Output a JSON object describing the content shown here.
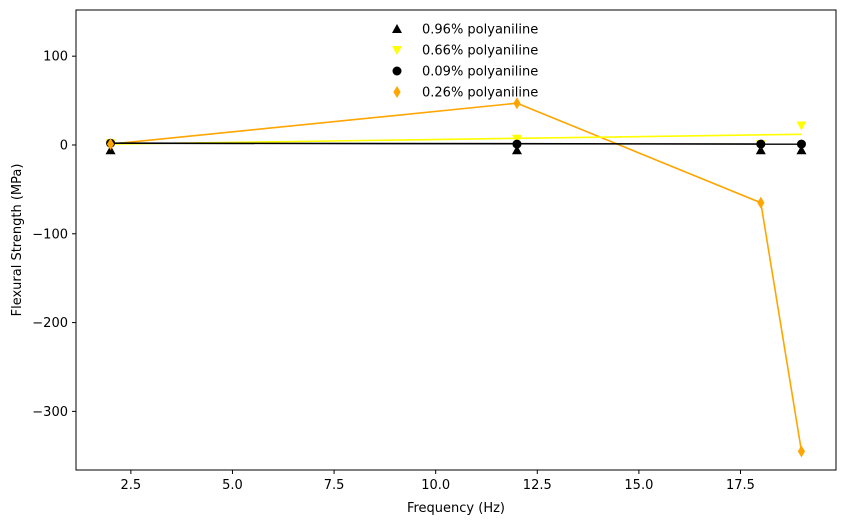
{
  "chart_data": {
    "type": "scatter",
    "xlabel": "Frequency (Hz)",
    "ylabel": "Flexural Strength (MPa)",
    "xlim": [
      1.15,
      19.85
    ],
    "ylim": [
      -366,
      152
    ],
    "xticks": [
      2.5,
      5.0,
      7.5,
      10.0,
      12.5,
      15.0,
      17.5
    ],
    "xtick_labels": [
      "2.5",
      "5.0",
      "7.5",
      "10.0",
      "12.5",
      "15.0",
      "17.5"
    ],
    "yticks": [
      100,
      0,
      -100,
      -200,
      -300
    ],
    "ytick_labels": [
      "100",
      "0",
      "−100",
      "−200",
      "−300"
    ],
    "grid": false,
    "legend_position": "top-center",
    "series": [
      {
        "name": "0.96% polyaniline",
        "marker": "triangle-up",
        "color": "#000000",
        "points": [
          [
            2,
            -6
          ],
          [
            12,
            -6
          ],
          [
            18,
            -6
          ],
          [
            19,
            -6
          ]
        ],
        "fit_line": null
      },
      {
        "name": "0.66% polyaniline",
        "marker": "triangle-down",
        "color": "#ffff00",
        "points": [
          [
            2,
            2
          ],
          [
            12,
            7
          ],
          [
            18,
            1
          ],
          [
            19,
            22
          ]
        ],
        "fit_line": [
          [
            2,
            1
          ],
          [
            19,
            12
          ]
        ]
      },
      {
        "name": "0.09% polyaniline",
        "marker": "circle",
        "color": "#000000",
        "points": [
          [
            2,
            2
          ],
          [
            12,
            1
          ],
          [
            18,
            1
          ],
          [
            19,
            1
          ]
        ],
        "fit_line": [
          [
            2,
            2
          ],
          [
            19,
            1
          ]
        ]
      },
      {
        "name": "0.26% polyaniline",
        "marker": "thin-diamond",
        "color": "#ffa500",
        "points": [
          [
            2,
            1
          ],
          [
            12,
            47
          ],
          [
            18,
            -65
          ],
          [
            19,
            -345
          ]
        ],
        "fit_line": [
          [
            2,
            1
          ],
          [
            12,
            47
          ],
          [
            18,
            -65
          ],
          [
            19,
            -345
          ]
        ]
      }
    ]
  }
}
